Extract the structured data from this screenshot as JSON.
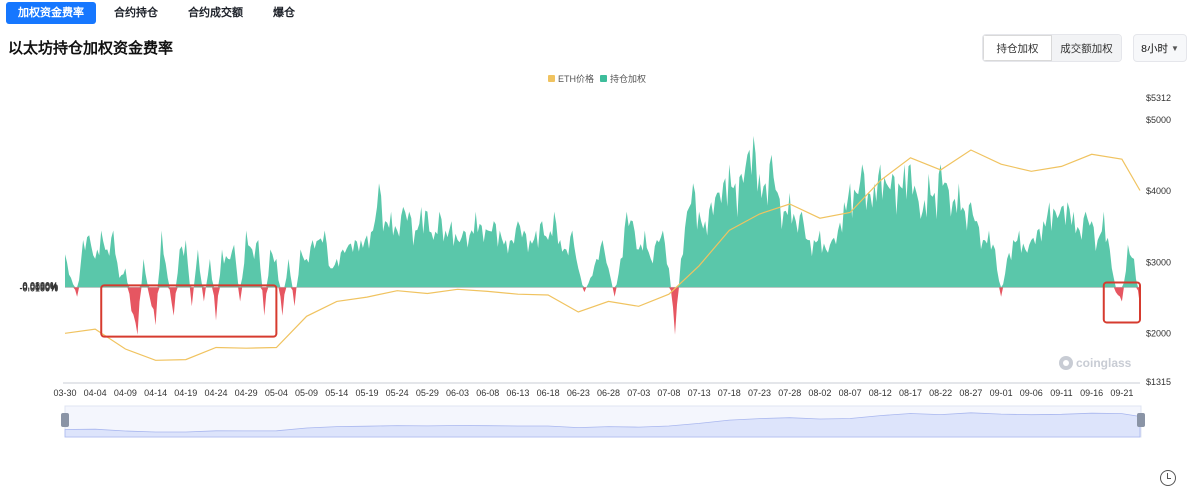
{
  "tabs": [
    {
      "label": "加权资金费率",
      "active": true
    },
    {
      "label": "合约持仓",
      "active": false
    },
    {
      "label": "合约成交额",
      "active": false
    },
    {
      "label": "爆仓",
      "active": false
    }
  ],
  "page_title": "以太坊持仓加权资金费率",
  "weight_toggle": [
    {
      "label": "持仓加权",
      "active": true
    },
    {
      "label": "成交额加权",
      "active": false
    }
  ],
  "interval": {
    "label": "8小时",
    "icon": "chevron-down-icon"
  },
  "watermark": "coinglass",
  "colors": {
    "funding_positive": "#3dbd9b",
    "funding_negative": "#e65661",
    "eth_price_line": "#f0c360",
    "highlight_box": "#d63b2f",
    "navigator_fill": "#dde4fb",
    "navigator_line": "#a9b7ef",
    "active_tab": "#1677ff"
  },
  "chart_data": {
    "type": "bar",
    "legend": [
      "ETH价格",
      "持仓加权"
    ],
    "legend_placement": "top-center",
    "x_ticks": [
      "03-30",
      "04-04",
      "04-09",
      "04-14",
      "04-19",
      "04-24",
      "04-29",
      "05-04",
      "05-09",
      "05-14",
      "05-19",
      "05-24",
      "05-29",
      "06-03",
      "06-08",
      "06-13",
      "06-18",
      "06-23",
      "06-28",
      "07-03",
      "07-08",
      "07-13",
      "07-18",
      "07-23",
      "07-28",
      "08-02",
      "08-07",
      "08-12",
      "08-17",
      "08-22",
      "08-27",
      "09-01",
      "09-06",
      "09-11",
      "09-16",
      "09-21"
    ],
    "y_left": {
      "ticks": [
        "0.0200%",
        "0.0150%",
        "0.0100%",
        "0.0050%",
        "0%",
        "-0.0050%",
        "-0.0100%"
      ],
      "range": [
        -0.01,
        0.02
      ],
      "unit": "%"
    },
    "y_right": {
      "ticks": [
        "$5312",
        "$5000",
        "$4000",
        "$3000",
        "$2000",
        "$1315"
      ],
      "range": [
        1315,
        5312
      ],
      "unit": "$"
    },
    "series": [
      {
        "name": "持仓加权",
        "type": "area",
        "unit": "%",
        "points": [
          [
            "03-30",
            0.0035
          ],
          [
            "03-31",
            0.001
          ],
          [
            "04-01",
            -0.001
          ],
          [
            "04-02",
            0.005
          ],
          [
            "04-03",
            0.0055
          ],
          [
            "04-04",
            0.003
          ],
          [
            "04-05",
            0.006
          ],
          [
            "04-06",
            0.004
          ],
          [
            "04-07",
            0.006
          ],
          [
            "04-08",
            0.001
          ],
          [
            "04-09",
            0.002
          ],
          [
            "04-10",
            -0.0025
          ],
          [
            "04-11",
            -0.005
          ],
          [
            "04-12",
            0.003
          ],
          [
            "04-13",
            -0.001
          ],
          [
            "04-14",
            -0.004
          ],
          [
            "04-15",
            0.006
          ],
          [
            "04-16",
            0.001
          ],
          [
            "04-17",
            -0.003
          ],
          [
            "04-18",
            0.004
          ],
          [
            "04-19",
            0.005
          ],
          [
            "04-20",
            -0.002
          ],
          [
            "04-21",
            0.004
          ],
          [
            "04-22",
            -0.0015
          ],
          [
            "04-23",
            0.003
          ],
          [
            "04-24",
            -0.0035
          ],
          [
            "04-25",
            0.004
          ],
          [
            "04-26",
            0.003
          ],
          [
            "04-27",
            0.0045
          ],
          [
            "04-28",
            -0.0015
          ],
          [
            "04-29",
            0.006
          ],
          [
            "04-30",
            0.004
          ],
          [
            "05-01",
            0.005
          ],
          [
            "05-02",
            -0.003
          ],
          [
            "05-03",
            0.004
          ],
          [
            "05-04",
            0.003
          ],
          [
            "05-05",
            -0.003
          ],
          [
            "05-06",
            0.003
          ],
          [
            "05-07",
            -0.002
          ],
          [
            "05-08",
            0.004
          ],
          [
            "05-09",
            0.003
          ],
          [
            "05-10",
            0.005
          ],
          [
            "05-11",
            0.005
          ],
          [
            "05-12",
            0.006
          ],
          [
            "05-13",
            0.002
          ],
          [
            "05-14",
            0.003
          ],
          [
            "05-15",
            0.004
          ],
          [
            "05-16",
            0.0045
          ],
          [
            "05-17",
            0.005
          ],
          [
            "05-18",
            0.005
          ],
          [
            "05-19",
            0.0055
          ],
          [
            "05-20",
            0.006
          ],
          [
            "05-21",
            0.011
          ],
          [
            "05-22",
            0.007
          ],
          [
            "05-23",
            0.008
          ],
          [
            "05-24",
            0.006
          ],
          [
            "05-25",
            0.0085
          ],
          [
            "05-26",
            0.008
          ],
          [
            "05-27",
            0.006
          ],
          [
            "05-28",
            0.0085
          ],
          [
            "05-29",
            0.008
          ],
          [
            "05-30",
            0.005
          ],
          [
            "05-31",
            0.008
          ],
          [
            "06-01",
            0.006
          ],
          [
            "06-02",
            0.007
          ],
          [
            "06-03",
            0.005
          ],
          [
            "06-04",
            0.006
          ],
          [
            "06-05",
            0.0055
          ],
          [
            "06-06",
            0.008
          ],
          [
            "06-07",
            0.0065
          ],
          [
            "06-08",
            0.006
          ],
          [
            "06-09",
            0.007
          ],
          [
            "06-10",
            0.006
          ],
          [
            "06-11",
            0.005
          ],
          [
            "06-12",
            0.005
          ],
          [
            "06-13",
            0.007
          ],
          [
            "06-14",
            0.006
          ],
          [
            "06-15",
            0.005
          ],
          [
            "06-16",
            0.006
          ],
          [
            "06-17",
            0.007
          ],
          [
            "06-18",
            0.005
          ],
          [
            "06-19",
            0.008
          ],
          [
            "06-20",
            0.005
          ],
          [
            "06-21",
            0.004
          ],
          [
            "06-22",
            0.006
          ],
          [
            "06-23",
            0.002
          ],
          [
            "06-24",
            -0.0005
          ],
          [
            "06-25",
            0.001
          ],
          [
            "06-26",
            0.003
          ],
          [
            "06-27",
            0.005
          ],
          [
            "06-28",
            0.002
          ],
          [
            "06-29",
            -0.001
          ],
          [
            "06-30",
            0.003
          ],
          [
            "07-01",
            0.008
          ],
          [
            "07-02",
            0.007
          ],
          [
            "07-03",
            0.004
          ],
          [
            "07-04",
            0.006
          ],
          [
            "07-05",
            0.003
          ],
          [
            "07-06",
            0.005
          ],
          [
            "07-07",
            0.006
          ],
          [
            "07-08",
            0.002
          ],
          [
            "07-09",
            -0.005
          ],
          [
            "07-10",
            0.003
          ],
          [
            "07-11",
            0.008
          ],
          [
            "07-12",
            0.011
          ],
          [
            "07-13",
            0.008
          ],
          [
            "07-14",
            0.007
          ],
          [
            "07-15",
            0.009
          ],
          [
            "07-16",
            0.01
          ],
          [
            "07-17",
            0.011
          ],
          [
            "07-18",
            0.013
          ],
          [
            "07-19",
            0.011
          ],
          [
            "07-20",
            0.012
          ],
          [
            "07-21",
            0.014
          ],
          [
            "07-22",
            0.016
          ],
          [
            "07-23",
            0.012
          ],
          [
            "07-24",
            0.011
          ],
          [
            "07-25",
            0.014
          ],
          [
            "07-26",
            0.01
          ],
          [
            "07-27",
            0.008
          ],
          [
            "07-28",
            0.01
          ],
          [
            "07-29",
            0.007
          ],
          [
            "07-30",
            0.008
          ],
          [
            "07-31",
            0.005
          ],
          [
            "08-01",
            0.005
          ],
          [
            "08-02",
            0.006
          ],
          [
            "08-03",
            0.004
          ],
          [
            "08-04",
            0.005
          ],
          [
            "08-05",
            0.006
          ],
          [
            "08-06",
            0.009
          ],
          [
            "08-07",
            0.011
          ],
          [
            "08-08",
            0.01
          ],
          [
            "08-09",
            0.013
          ],
          [
            "08-10",
            0.01
          ],
          [
            "08-11",
            0.011
          ],
          [
            "08-12",
            0.013
          ],
          [
            "08-13",
            0.011
          ],
          [
            "08-14",
            0.012
          ],
          [
            "08-15",
            0.011
          ],
          [
            "08-16",
            0.013
          ],
          [
            "08-17",
            0.013
          ],
          [
            "08-18",
            0.01
          ],
          [
            "08-19",
            0.008
          ],
          [
            "08-20",
            0.012
          ],
          [
            "08-21",
            0.01
          ],
          [
            "08-22",
            0.013
          ],
          [
            "08-23",
            0.011
          ],
          [
            "08-24",
            0.009
          ],
          [
            "08-25",
            0.011
          ],
          [
            "08-26",
            0.008
          ],
          [
            "08-27",
            0.009
          ],
          [
            "08-28",
            0.007
          ],
          [
            "08-29",
            0.005
          ],
          [
            "08-30",
            0.006
          ],
          [
            "08-31",
            0.004
          ],
          [
            "09-01",
            -0.001
          ],
          [
            "09-02",
            0.003
          ],
          [
            "09-03",
            0.005
          ],
          [
            "09-04",
            0.006
          ],
          [
            "09-05",
            0.004
          ],
          [
            "09-06",
            0.005
          ],
          [
            "09-07",
            0.006
          ],
          [
            "09-08",
            0.007
          ],
          [
            "09-09",
            0.009
          ],
          [
            "09-10",
            0.008
          ],
          [
            "09-11",
            0.0085
          ],
          [
            "09-12",
            0.009
          ],
          [
            "09-13",
            0.008
          ],
          [
            "09-14",
            0.006
          ],
          [
            "09-15",
            0.008
          ],
          [
            "09-16",
            0.007
          ],
          [
            "09-17",
            0.005
          ],
          [
            "09-18",
            0.008
          ],
          [
            "09-19",
            0.004
          ],
          [
            "09-20",
            -0.0005
          ],
          [
            "09-21",
            -0.0015
          ],
          [
            "09-22",
            0.0045
          ],
          [
            "09-23",
            0.003
          ],
          [
            "09-24",
            -0.002
          ]
        ]
      },
      {
        "name": "ETH价格",
        "type": "line",
        "axis": "right",
        "unit": "$",
        "points": [
          [
            "03-30",
            2000
          ],
          [
            "04-04",
            2060
          ],
          [
            "04-09",
            1780
          ],
          [
            "04-14",
            1620
          ],
          [
            "04-19",
            1630
          ],
          [
            "04-24",
            1800
          ],
          [
            "04-29",
            1790
          ],
          [
            "05-04",
            1800
          ],
          [
            "05-09",
            2240
          ],
          [
            "05-14",
            2450
          ],
          [
            "05-19",
            2510
          ],
          [
            "05-24",
            2600
          ],
          [
            "05-29",
            2560
          ],
          [
            "06-03",
            2620
          ],
          [
            "06-08",
            2590
          ],
          [
            "06-13",
            2550
          ],
          [
            "06-18",
            2540
          ],
          [
            "06-23",
            2300
          ],
          [
            "06-28",
            2450
          ],
          [
            "07-03",
            2380
          ],
          [
            "07-08",
            2550
          ],
          [
            "07-13",
            2950
          ],
          [
            "07-18",
            3450
          ],
          [
            "07-23",
            3680
          ],
          [
            "07-28",
            3820
          ],
          [
            "08-02",
            3620
          ],
          [
            "08-07",
            3700
          ],
          [
            "08-12",
            4150
          ],
          [
            "08-17",
            4470
          ],
          [
            "08-22",
            4300
          ],
          [
            "08-27",
            4580
          ],
          [
            "09-01",
            4380
          ],
          [
            "09-06",
            4280
          ],
          [
            "09-11",
            4350
          ],
          [
            "09-16",
            4520
          ],
          [
            "09-21",
            4450
          ],
          [
            "09-24",
            4010
          ]
        ]
      }
    ],
    "highlight_boxes": [
      {
        "x_start": "04-05",
        "x_end": "05-04",
        "y_range": [
          -0.005,
          0
        ]
      },
      {
        "x_start": "09-18",
        "x_end": "09-24",
        "y_range": [
          -0.0035,
          0.0003
        ]
      }
    ],
    "navigator": {
      "range": [
        "03-30",
        "09-24"
      ]
    }
  }
}
